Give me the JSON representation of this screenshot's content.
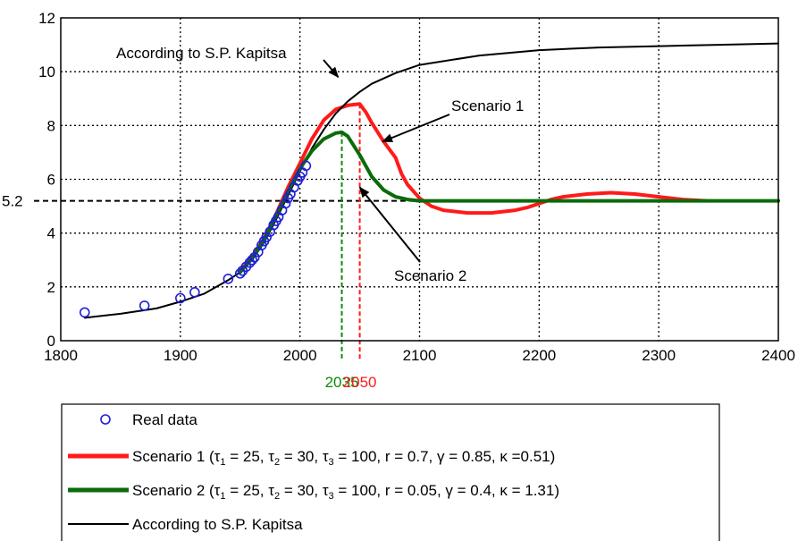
{
  "chart_data": {
    "type": "line",
    "xlim": [
      1800,
      2400
    ],
    "ylim": [
      0,
      12
    ],
    "x_ticks": [
      "1800",
      "1900",
      "2000",
      "2100",
      "2200",
      "2300",
      "2400"
    ],
    "y_ticks": [
      "0",
      "2",
      "4",
      "6",
      "8",
      "10",
      "12"
    ],
    "grid": true,
    "legend_position": "bottom",
    "series": [
      {
        "name": "Real data",
        "kind": "scatter",
        "color": "#1f1fd6",
        "x": [
          1820,
          1870,
          1900,
          1912,
          1940,
          1950,
          1952,
          1955,
          1958,
          1960,
          1962,
          1965,
          1968,
          1970,
          1972,
          1975,
          1978,
          1980,
          1982,
          1985,
          1988,
          1990,
          1992,
          1995,
          1998,
          2000,
          2002,
          2005
        ],
        "y": [
          1.05,
          1.3,
          1.58,
          1.8,
          2.3,
          2.5,
          2.6,
          2.75,
          2.9,
          3.0,
          3.1,
          3.3,
          3.55,
          3.7,
          3.85,
          4.05,
          4.3,
          4.45,
          4.6,
          4.85,
          5.1,
          5.3,
          5.45,
          5.7,
          5.95,
          6.1,
          6.25,
          6.5
        ]
      },
      {
        "name": "Scenario 1",
        "legend_prefix": "Scenario 1 (",
        "legend_params": [
          {
            "sym": "τ",
            "sub": "1",
            "rest": " = 25, "
          },
          {
            "sym": "τ",
            "sub": "2",
            "rest": " = 30, "
          },
          {
            "sym": "τ",
            "sub": "3",
            "rest": " = 100, r = 0.7, γ = 0.85, κ =0.51)"
          }
        ],
        "color": "#ff1a1a",
        "x": [
          1950,
          1960,
          1970,
          1980,
          1990,
          2000,
          2010,
          2020,
          2030,
          2040,
          2050,
          2055,
          2060,
          2070,
          2080,
          2085,
          2090,
          2100,
          2110,
          2120,
          2140,
          2160,
          2180,
          2190,
          2200,
          2210,
          2220,
          2240,
          2260,
          2280,
          2300,
          2320,
          2340
        ],
        "y": [
          2.6,
          3.1,
          3.8,
          4.7,
          5.7,
          6.6,
          7.5,
          8.2,
          8.6,
          8.75,
          8.8,
          8.5,
          8.1,
          7.4,
          6.8,
          6.2,
          5.8,
          5.3,
          5.0,
          4.85,
          4.75,
          4.75,
          4.85,
          4.95,
          5.1,
          5.25,
          5.35,
          5.45,
          5.5,
          5.45,
          5.35,
          5.25,
          5.2
        ]
      },
      {
        "name": "Scenario 2",
        "legend_prefix": "Scenario 2 (",
        "legend_params": [
          {
            "sym": "τ",
            "sub": "1",
            "rest": " = 25, "
          },
          {
            "sym": "τ",
            "sub": "2",
            "rest": " = 30, "
          },
          {
            "sym": "τ",
            "sub": "3",
            "rest": " = 100, r = 0.05, γ = 0.4, κ = 1.31)"
          }
        ],
        "color": "#0a6b0a",
        "x": [
          1950,
          1960,
          1970,
          1980,
          1990,
          2000,
          2010,
          2020,
          2030,
          2035,
          2040,
          2050,
          2060,
          2070,
          2080,
          2090,
          2100,
          2150,
          2200,
          2300,
          2400
        ],
        "y": [
          2.55,
          3.05,
          3.75,
          4.65,
          5.55,
          6.4,
          7.05,
          7.5,
          7.72,
          7.75,
          7.6,
          6.9,
          6.1,
          5.6,
          5.35,
          5.25,
          5.2,
          5.2,
          5.2,
          5.2,
          5.2
        ]
      },
      {
        "name": "According to S.P. Kapitsa",
        "legend_text": "According to S.P. Kapitsa",
        "color": "#000000",
        "x": [
          1820,
          1850,
          1880,
          1900,
          1920,
          1940,
          1950,
          1960,
          1970,
          1980,
          1990,
          2000,
          2010,
          2020,
          2030,
          2040,
          2050,
          2060,
          2080,
          2100,
          2150,
          2200,
          2250,
          2300,
          2350,
          2400
        ],
        "y": [
          0.85,
          1.0,
          1.2,
          1.45,
          1.75,
          2.25,
          2.55,
          3.0,
          3.65,
          4.5,
          5.4,
          6.3,
          7.15,
          7.85,
          8.45,
          8.9,
          9.25,
          9.55,
          9.95,
          10.25,
          10.6,
          10.8,
          10.9,
          10.95,
          11.0,
          11.05
        ]
      }
    ],
    "reference_line": {
      "y": 5.2,
      "label": "5.2"
    },
    "markers": [
      {
        "x": 2035,
        "label": "2035",
        "color": "#0a8a0a",
        "y_top": 7.75
      },
      {
        "x": 2050,
        "label": "2050",
        "color": "#ff1a1a",
        "y_top": 8.8
      }
    ],
    "annotations": [
      {
        "text": "According to S.P. Kapitsa",
        "target_x": 2032,
        "target_y": 9.8
      },
      {
        "text": "Scenario 1",
        "target_x": 2069,
        "target_y": 7.4
      },
      {
        "text": "Scenario 2",
        "target_x": 2050,
        "target_y": 5.7
      }
    ]
  }
}
